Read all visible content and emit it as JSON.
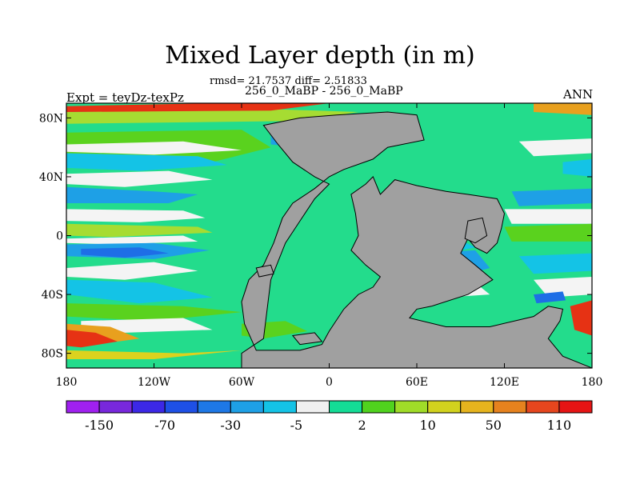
{
  "figure": {
    "title": "Mixed Layer depth (in m)",
    "stats": "rmsd= 21.7537 diff= 2.51833",
    "experiment_pair": "256_0_MaBP - 256_0_MaBP",
    "experiment_label": "Expt = teyDz-texPz",
    "season": "ANN"
  },
  "map": {
    "projection": "cylindrical equidistant",
    "lon_range": [
      -180,
      180
    ],
    "lat_range": [
      -90,
      90
    ],
    "y_ticks": [
      {
        "lat": 80,
        "label": "80N"
      },
      {
        "lat": 40,
        "label": "40N"
      },
      {
        "lat": 0,
        "label": "0"
      },
      {
        "lat": -40,
        "label": "40S"
      },
      {
        "lat": -80,
        "label": "80S"
      }
    ],
    "x_ticks": [
      {
        "lon": -180,
        "label": "180"
      },
      {
        "lon": -120,
        "label": "120W"
      },
      {
        "lon": -60,
        "label": "60W"
      },
      {
        "lon": 0,
        "label": "0"
      },
      {
        "lon": 60,
        "label": "60E"
      },
      {
        "lon": 120,
        "label": "120E"
      },
      {
        "lon": 180,
        "label": "180"
      }
    ],
    "land_color": "#a0a0a0",
    "field_colors": {
      "white": "#f4f4f4",
      "light_green": "#23dc8c",
      "green": "#5ad21e",
      "lime": "#a6dc32",
      "blue": "#1e6ee6",
      "light_blue": "#1ea0e6",
      "cyan": "#14c3e6",
      "yellow": "#dcd21e",
      "orange": "#e8a01e",
      "red": "#e63214"
    }
  },
  "colorbar": {
    "colors": [
      "#a020f0",
      "#7828dc",
      "#3c28e6",
      "#1e50e6",
      "#1e78e6",
      "#1ea0e6",
      "#14c3e6",
      "#f0f0f0",
      "#14dc96",
      "#50d21e",
      "#a0dc28",
      "#d2d21e",
      "#e6b41e",
      "#e6821e",
      "#e6461e",
      "#e61414"
    ],
    "labels": [
      {
        "boundary": 1,
        "text": "-150"
      },
      {
        "boundary": 3,
        "text": "-70"
      },
      {
        "boundary": 5,
        "text": "-30"
      },
      {
        "boundary": 7,
        "text": "-5"
      },
      {
        "boundary": 9,
        "text": "2"
      },
      {
        "boundary": 11,
        "text": "10"
      },
      {
        "boundary": 13,
        "text": "50"
      },
      {
        "boundary": 15,
        "text": "110"
      }
    ]
  }
}
